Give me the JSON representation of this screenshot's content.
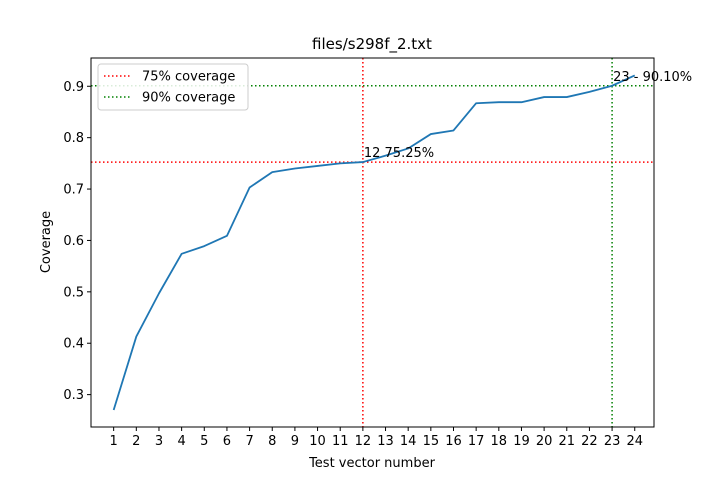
{
  "chart_data": {
    "type": "line",
    "title": "files/s298f_2.txt",
    "xlabel": "Test vector number",
    "ylabel": "Coverage",
    "xlim": [
      0.0,
      24.85
    ],
    "ylim": [
      0.237,
      0.955
    ],
    "x_ticks": [
      1,
      2,
      3,
      4,
      5,
      6,
      7,
      8,
      9,
      10,
      11,
      12,
      13,
      14,
      15,
      16,
      17,
      18,
      19,
      20,
      21,
      22,
      23,
      24
    ],
    "y_ticks": [
      0.3,
      0.4,
      0.5,
      0.6,
      0.7,
      0.8,
      0.9
    ],
    "y_tick_labels": [
      "0.3",
      "0.4",
      "0.5",
      "0.6",
      "0.7",
      "0.8",
      "0.9"
    ],
    "grid": false,
    "series": [
      {
        "color": "#1f77b4",
        "x": [
          1,
          2,
          3,
          4,
          5,
          6,
          7,
          8,
          9,
          10,
          11,
          12,
          13,
          14,
          15,
          16,
          17,
          18,
          19,
          20,
          21,
          22,
          23,
          24
        ],
        "values": [
          0.27,
          0.413,
          0.497,
          0.574,
          0.589,
          0.609,
          0.703,
          0.733,
          0.74,
          0.745,
          0.75,
          0.7525,
          0.765,
          0.779,
          0.807,
          0.814,
          0.867,
          0.869,
          0.869,
          0.879,
          0.879,
          0.889,
          0.901,
          0.921
        ]
      }
    ],
    "reference_lines": [
      {
        "label": "75% coverage",
        "color": "#ff0000",
        "x": 12,
        "y": 0.7525,
        "style": "dotted"
      },
      {
        "label": "90% coverage",
        "color": "#008000",
        "x": 23,
        "y": 0.901,
        "style": "dotted"
      }
    ],
    "annotations": [
      {
        "text": "12 75.25%",
        "x": 12,
        "y": 0.7525
      },
      {
        "text": "23 - 90.10%",
        "x": 23,
        "y": 0.901
      }
    ],
    "legend_position": "top-left"
  }
}
